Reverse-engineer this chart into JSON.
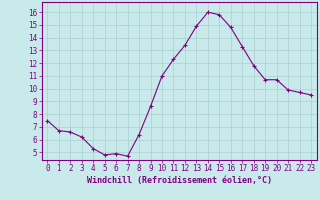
{
  "x": [
    0,
    1,
    2,
    3,
    4,
    5,
    6,
    7,
    8,
    9,
    10,
    11,
    12,
    13,
    14,
    15,
    16,
    17,
    18,
    19,
    20,
    21,
    22,
    23
  ],
  "y": [
    7.5,
    6.7,
    6.6,
    6.2,
    5.3,
    4.8,
    4.9,
    4.7,
    6.4,
    8.6,
    11.0,
    12.3,
    13.4,
    14.9,
    16.0,
    15.8,
    14.8,
    13.3,
    11.8,
    10.7,
    10.7,
    9.9,
    9.7,
    9.5
  ],
  "line_color": "#800080",
  "marker": "+",
  "marker_size": 3,
  "marker_lw": 0.8,
  "bg_color": "#c8eaea",
  "grid_color": "#aacece",
  "xlabel": "Windchill (Refroidissement éolien,°C)",
  "xlabel_color": "#800080",
  "tick_color": "#800080",
  "ylabel_ticks": [
    5,
    6,
    7,
    8,
    9,
    10,
    11,
    12,
    13,
    14,
    15,
    16
  ],
  "xlim": [
    -0.5,
    23.5
  ],
  "ylim": [
    4.4,
    16.8
  ],
  "line_width": 0.8,
  "tick_fontsize": 5.5,
  "xlabel_fontsize": 6.0
}
